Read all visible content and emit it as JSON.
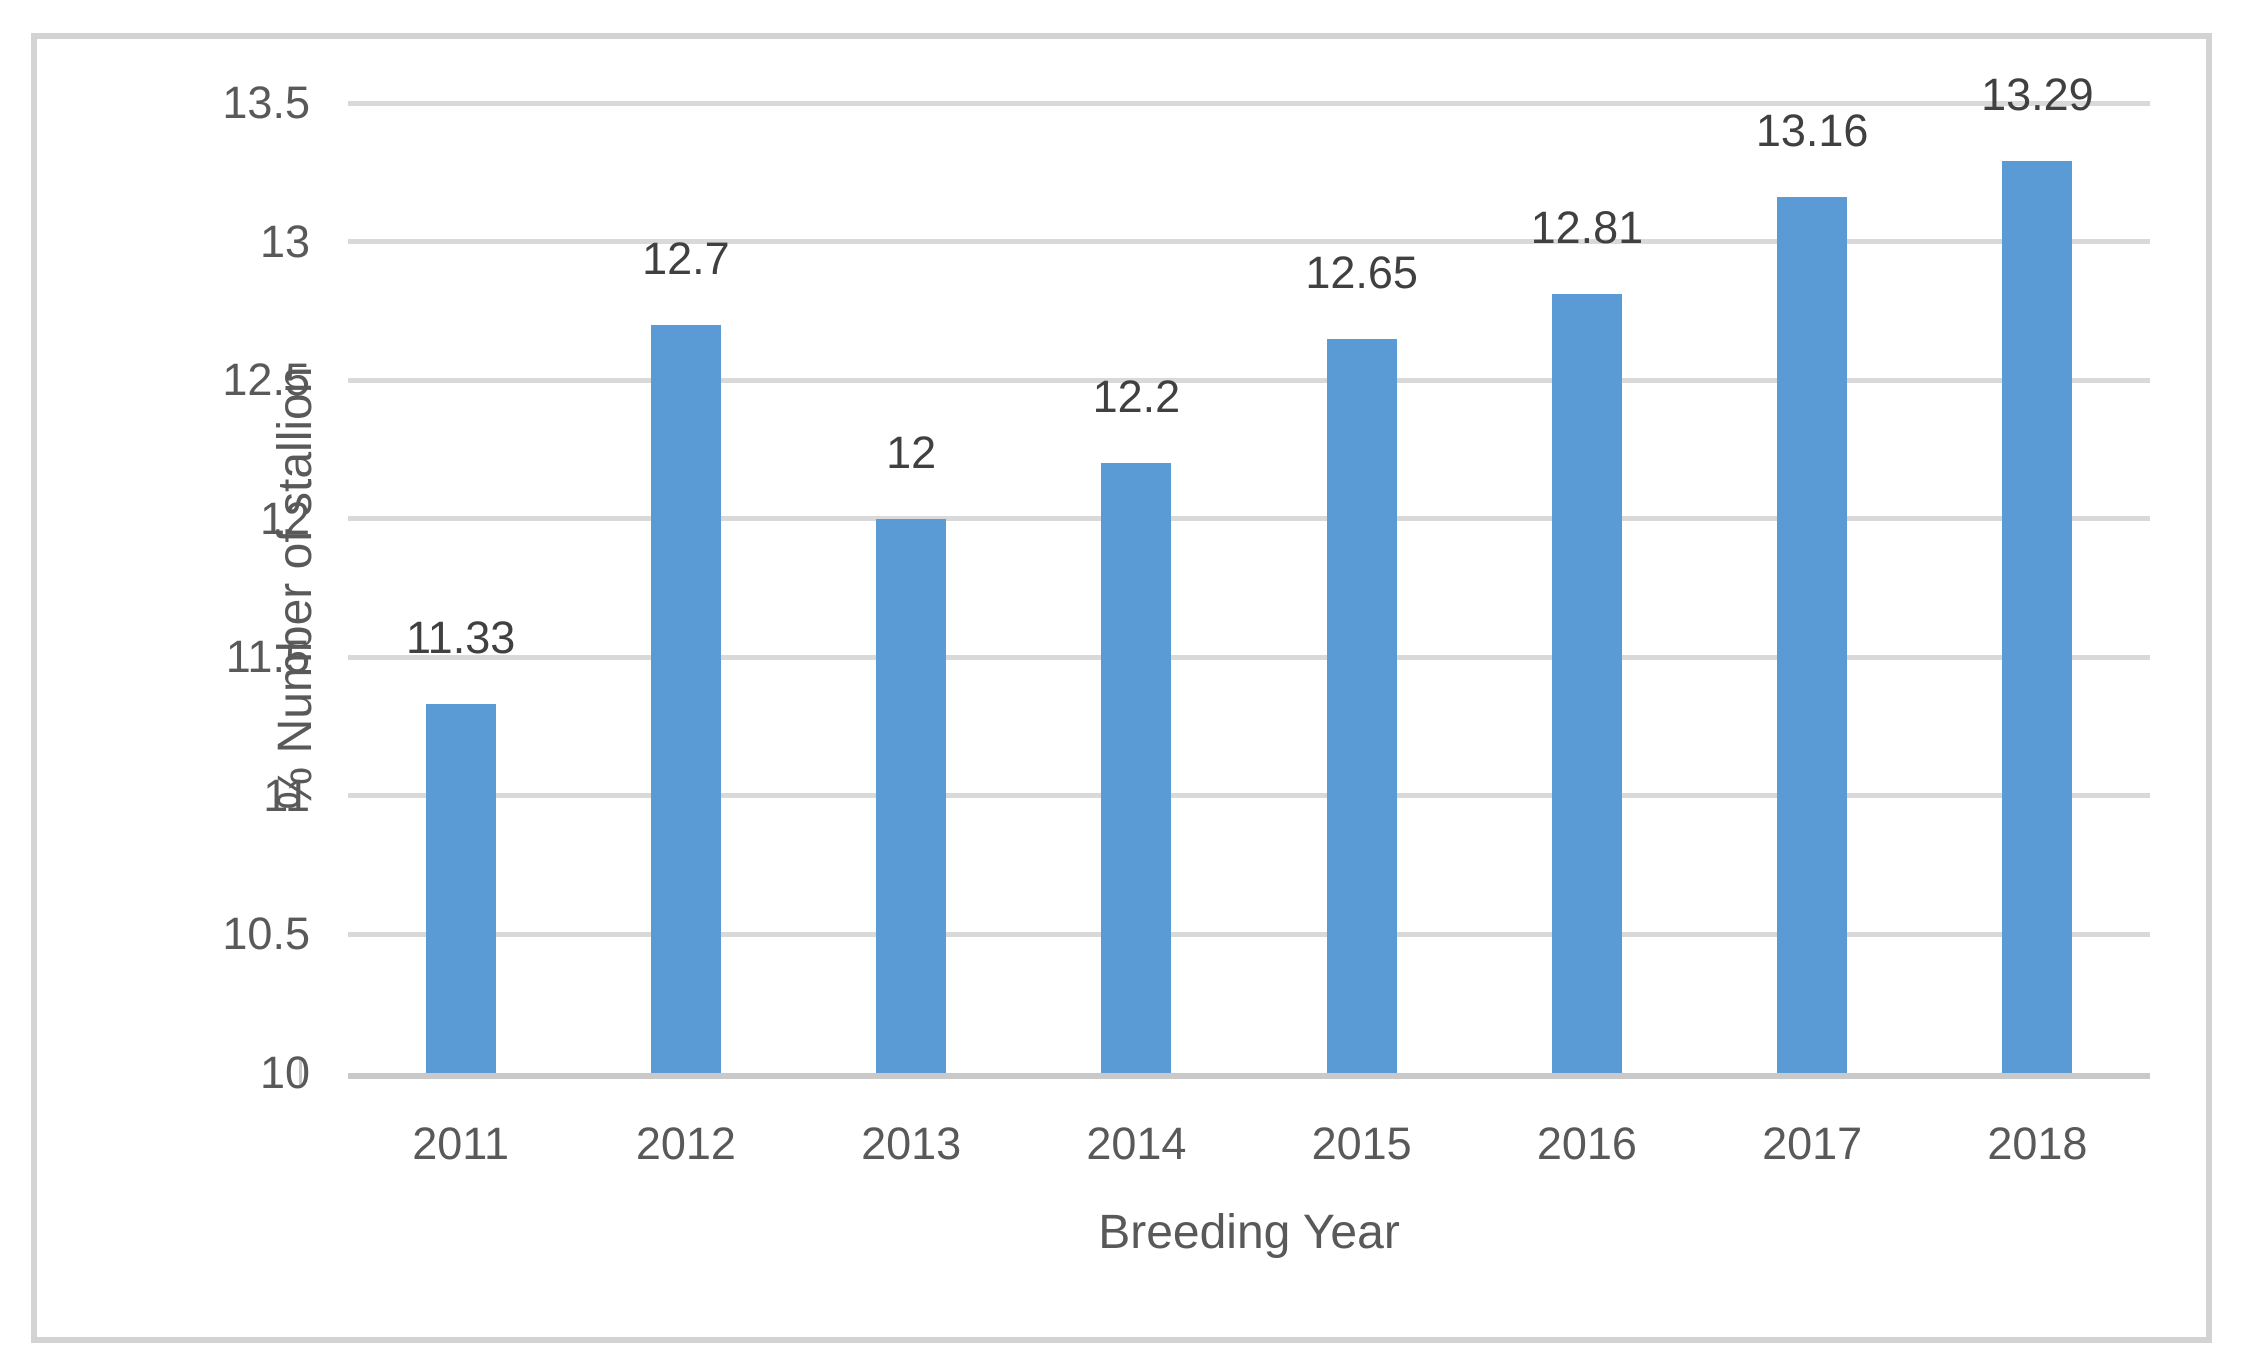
{
  "chart_data": {
    "type": "bar",
    "title": "",
    "categories": [
      "2011",
      "2012",
      "2013",
      "2014",
      "2015",
      "2016",
      "2017",
      "2018"
    ],
    "values": [
      11.33,
      12.7,
      12,
      12.2,
      12.65,
      12.81,
      13.16,
      13.29
    ],
    "data_labels": [
      "11.33",
      "12.7",
      "12",
      "12.2",
      "12.65",
      "12.81",
      "13.16",
      "13.29"
    ],
    "xlabel": "Breeding Year",
    "ylabel": "% Number of stallion",
    "ylim": [
      10,
      13.5
    ],
    "ytick_step": 0.5,
    "yticks": [
      "10",
      "10.5",
      "11",
      "11.5",
      "12",
      "12.5",
      "13",
      "13.5"
    ],
    "grid": "horizontal",
    "legend": "none",
    "series_name": "",
    "colors": {
      "bar": "#5B9BD5",
      "gridline": "#D9D9D9",
      "axis_line": "#C9C9C9",
      "tick_label": "#595959",
      "data_label": "#404040",
      "axis_title": "#595959",
      "frame": "#D3D3D3"
    }
  }
}
